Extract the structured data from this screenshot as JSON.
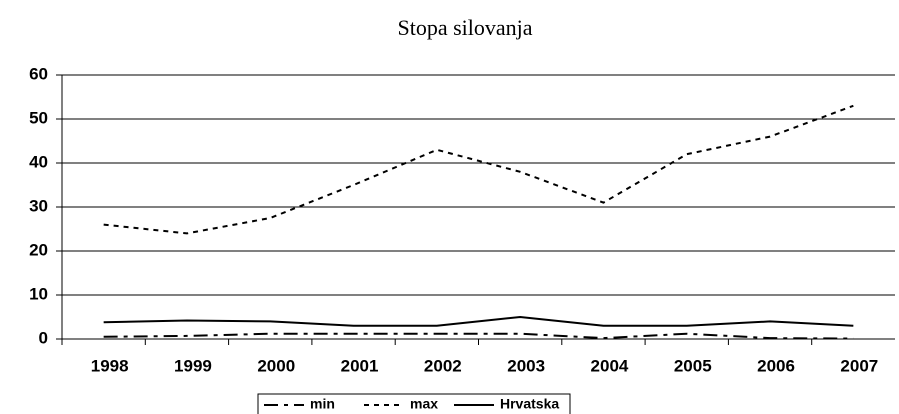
{
  "chart_data": {
    "type": "line",
    "title": "Stopa silovanja",
    "categories": [
      "1998",
      "1999",
      "2000",
      "2001",
      "2002",
      "2003",
      "2004",
      "2005",
      "2006",
      "2007"
    ],
    "series": [
      {
        "name": "min",
        "color": "#000000",
        "dash": "14,6,4,6",
        "values": [
          0.5,
          0.7,
          1.2,
          1.2,
          1.2,
          1.2,
          0.2,
          1.2,
          0.2,
          0.1
        ]
      },
      {
        "name": "max",
        "color": "#000000",
        "dash": "5,5",
        "values": [
          26,
          24,
          27.5,
          35,
          43,
          38,
          31,
          42,
          46,
          53
        ]
      },
      {
        "name": "Hrvatska",
        "color": "#000000",
        "dash": "none",
        "values": [
          3.8,
          4.2,
          4,
          3,
          3,
          5,
          3,
          3,
          4,
          3
        ]
      }
    ],
    "ylim": [
      0,
      60
    ],
    "yticks": [
      0,
      10,
      20,
      30,
      40,
      50,
      60
    ],
    "grid": true,
    "legend": "bottom"
  }
}
